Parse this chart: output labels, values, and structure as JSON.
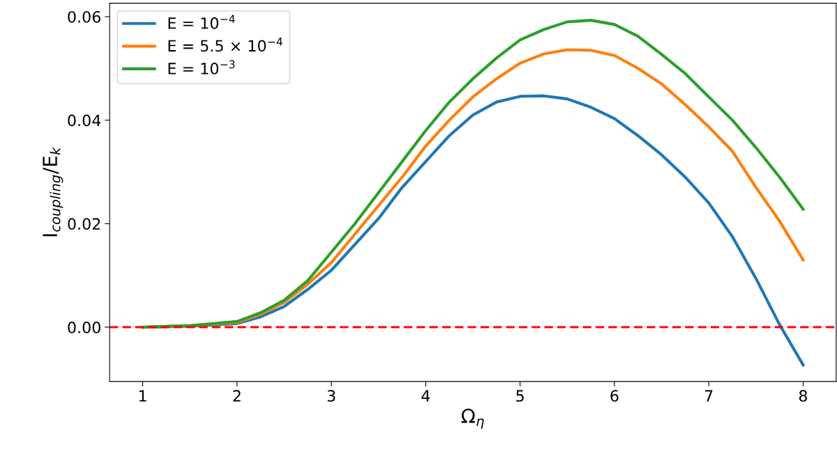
{
  "chart_data": {
    "type": "line",
    "xlabel": "Ω$_{η}$",
    "ylabel": "I$_{coupling}$/E$_{k}$",
    "x": [
      1,
      1.5,
      2,
      2.25,
      2.5,
      2.75,
      3,
      3.25,
      3.5,
      3.75,
      4,
      4.25,
      4.5,
      4.75,
      5,
      5.25,
      5.5,
      5.75,
      6,
      6.25,
      6.5,
      6.75,
      7,
      7.25,
      7.5,
      7.75,
      8
    ],
    "series": [
      {
        "name": "E = 10$^{−4}$",
        "color": "#1f77b4",
        "values": [
          0,
          0.0002,
          0.0007,
          0.002,
          0.004,
          0.0073,
          0.011,
          0.016,
          0.021,
          0.027,
          0.032,
          0.037,
          0.041,
          0.0435,
          0.0446,
          0.0447,
          0.0441,
          0.0425,
          0.0403,
          0.037,
          0.0333,
          0.029,
          0.024,
          0.0175,
          0.0094,
          0.0005,
          -0.0073
        ]
      },
      {
        "name": "E = 5.5 × 10$^{−4}$",
        "color": "#ff7f0e",
        "values": [
          0,
          0.0003,
          0.0009,
          0.0025,
          0.0048,
          0.0083,
          0.0125,
          0.018,
          0.0235,
          0.029,
          0.035,
          0.04,
          0.0445,
          0.048,
          0.051,
          0.0528,
          0.0536,
          0.0535,
          0.0525,
          0.05,
          0.047,
          0.043,
          0.0387,
          0.034,
          0.027,
          0.0205,
          0.013
        ]
      },
      {
        "name": "E = 10$^{−3}$",
        "color": "#2ca02c",
        "values": [
          0,
          0.0003,
          0.0011,
          0.0028,
          0.0052,
          0.009,
          0.0145,
          0.02,
          0.026,
          0.032,
          0.038,
          0.0435,
          0.048,
          0.052,
          0.0555,
          0.0575,
          0.059,
          0.0593,
          0.0585,
          0.0562,
          0.0527,
          0.049,
          0.0445,
          0.04,
          0.0347,
          0.029,
          0.0228
        ]
      }
    ],
    "ref_lines": [
      {
        "axis": "y",
        "value": 0,
        "color": "#ff0000",
        "line_style": "dashed"
      }
    ],
    "xlim": [
      0.65,
      8.35
    ],
    "ylim": [
      -0.0105,
      0.0626
    ],
    "xticks": [
      1,
      2,
      3,
      4,
      5,
      6,
      7,
      8
    ],
    "yticks": [
      {
        "value": 0,
        "label": "0.00"
      },
      {
        "value": 0.02,
        "label": "0.02"
      },
      {
        "value": 0.04,
        "label": "0.04"
      },
      {
        "value": 0.06,
        "label": "0.06"
      }
    ],
    "legend": "top left",
    "grid": false,
    "marker": "none",
    "line_style": "solid"
  }
}
